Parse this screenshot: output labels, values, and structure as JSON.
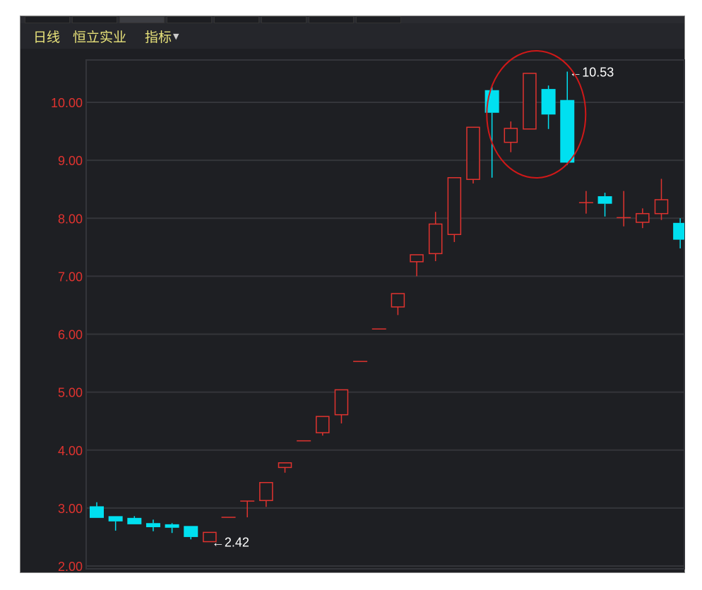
{
  "header": {
    "period": "日线",
    "stock_name": "恒立实业",
    "indicator_menu": "指标",
    "indicator_caret": "▼"
  },
  "colors": {
    "up": "#e0332f",
    "down": "#00e0f0",
    "background": "#1e1f23",
    "grid": "#34353a",
    "header_text": "#e8e27a",
    "highlight_circle": "#d01818"
  },
  "chart_data": {
    "type": "candlestick",
    "title": "",
    "ylim": [
      2.0,
      10.7
    ],
    "yticks": [
      "10.00",
      "9.00",
      "8.00",
      "7.00",
      "6.00",
      "5.00",
      "4.00",
      "3.00",
      "2.00"
    ],
    "ytick_values": [
      10,
      9,
      8,
      7,
      6,
      5,
      4,
      3,
      2
    ],
    "grid": true,
    "candles": [
      {
        "o": 3.03,
        "h": 3.1,
        "l": 2.83,
        "c": 2.83
      },
      {
        "o": 2.86,
        "h": 2.86,
        "l": 2.61,
        "c": 2.77
      },
      {
        "o": 2.83,
        "h": 2.86,
        "l": 2.72,
        "c": 2.72
      },
      {
        "o": 2.74,
        "h": 2.8,
        "l": 2.6,
        "c": 2.67
      },
      {
        "o": 2.72,
        "h": 2.74,
        "l": 2.57,
        "c": 2.66
      },
      {
        "o": 2.69,
        "h": 2.69,
        "l": 2.46,
        "c": 2.5
      },
      {
        "o": 2.42,
        "h": 2.58,
        "l": 2.42,
        "c": 2.58
      },
      {
        "o": 2.84,
        "h": 2.84,
        "l": 2.84,
        "c": 2.84
      },
      {
        "o": 3.12,
        "h": 3.12,
        "l": 2.84,
        "c": 3.12
      },
      {
        "o": 3.13,
        "h": 3.44,
        "l": 3.02,
        "c": 3.44
      },
      {
        "o": 3.7,
        "h": 3.78,
        "l": 3.61,
        "c": 3.78
      },
      {
        "o": 4.16,
        "h": 4.16,
        "l": 4.16,
        "c": 4.16
      },
      {
        "o": 4.3,
        "h": 4.58,
        "l": 4.25,
        "c": 4.58
      },
      {
        "o": 4.61,
        "h": 5.04,
        "l": 4.46,
        "c": 5.04
      },
      {
        "o": 5.53,
        "h": 5.53,
        "l": 5.53,
        "c": 5.53
      },
      {
        "o": 6.09,
        "h": 6.09,
        "l": 6.09,
        "c": 6.09
      },
      {
        "o": 6.47,
        "h": 6.7,
        "l": 6.33,
        "c": 6.7
      },
      {
        "o": 7.25,
        "h": 7.37,
        "l": 7.0,
        "c": 7.37
      },
      {
        "o": 7.39,
        "h": 8.11,
        "l": 7.26,
        "c": 7.9
      },
      {
        "o": 7.72,
        "h": 8.7,
        "l": 7.59,
        "c": 8.7
      },
      {
        "o": 8.67,
        "h": 9.57,
        "l": 8.6,
        "c": 9.57
      },
      {
        "o": 10.21,
        "h": 10.29,
        "l": 8.7,
        "c": 9.82
      },
      {
        "o": 9.31,
        "h": 9.67,
        "l": 9.14,
        "c": 9.55
      },
      {
        "o": 9.54,
        "h": 10.5,
        "l": 9.54,
        "c": 10.5
      },
      {
        "o": 10.23,
        "h": 10.29,
        "l": 9.54,
        "c": 9.79
      },
      {
        "o": 10.04,
        "h": 10.53,
        "l": 8.92,
        "c": 8.96
      },
      {
        "o": 8.27,
        "h": 8.47,
        "l": 8.08,
        "c": 8.27
      },
      {
        "o": 8.38,
        "h": 8.44,
        "l": 8.03,
        "c": 8.25
      },
      {
        "o": 8.01,
        "h": 8.47,
        "l": 7.86,
        "c": 8.01
      },
      {
        "o": 7.93,
        "h": 8.17,
        "l": 7.83,
        "c": 8.08
      },
      {
        "o": 8.08,
        "h": 8.68,
        "l": 7.97,
        "c": 8.32
      },
      {
        "o": 7.92,
        "h": 8.0,
        "l": 7.48,
        "c": 7.63
      }
    ],
    "annotations": [
      {
        "text": "←2.42",
        "candle": 6,
        "price": 2.42
      },
      {
        "text": "←10.53",
        "candle": 25,
        "price": 10.53
      }
    ],
    "highlight": {
      "shape": "ellipse",
      "candles_from": 22,
      "candles_to": 25
    }
  }
}
